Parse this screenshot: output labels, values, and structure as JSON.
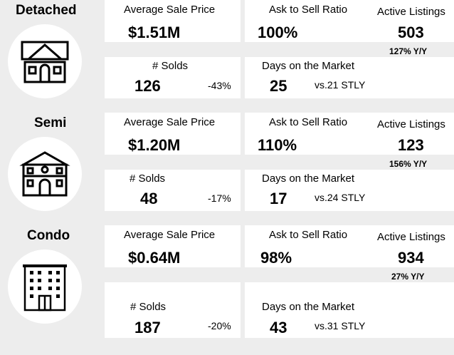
{
  "rows": [
    {
      "type": "Detached",
      "icon": "detached-house-icon",
      "avg_price_label": "Average Sale Price",
      "avg_price": "$1.51M",
      "ask_sell_label": "Ask to Sell Ratio",
      "ask_sell": "100%",
      "active_label": "Active Listings",
      "active": "503",
      "active_yoy": "127% Y/Y",
      "solds_label": "# Solds",
      "solds": "126",
      "solds_change": "-43%",
      "dom_label": "Days on the Market",
      "dom": "25",
      "dom_stly": "vs.21 STLY"
    },
    {
      "type": "Semi",
      "icon": "semi-detached-house-icon",
      "avg_price_label": "Average Sale Price",
      "avg_price": "$1.20M",
      "ask_sell_label": "Ask to Sell Ratio",
      "ask_sell": "110%",
      "active_label": "Active Listings",
      "active": "123",
      "active_yoy": "156% Y/Y",
      "solds_label": "# Solds",
      "solds": "48",
      "solds_change": "-17%",
      "dom_label": "Days on the Market",
      "dom": "17",
      "dom_stly": "vs.24 STLY"
    },
    {
      "type": "Condo",
      "icon": "condo-building-icon",
      "avg_price_label": "Average Sale Price",
      "avg_price": "$0.64M",
      "ask_sell_label": "Ask to Sell Ratio",
      "ask_sell": "98%",
      "active_label": "Active Listings",
      "active": "934",
      "active_yoy": "27% Y/Y",
      "solds_label": "# Solds",
      "solds": "187",
      "solds_change": "-20%",
      "dom_label": "Days on the Market",
      "dom": "43",
      "dom_stly": "vs.31 STLY"
    }
  ]
}
